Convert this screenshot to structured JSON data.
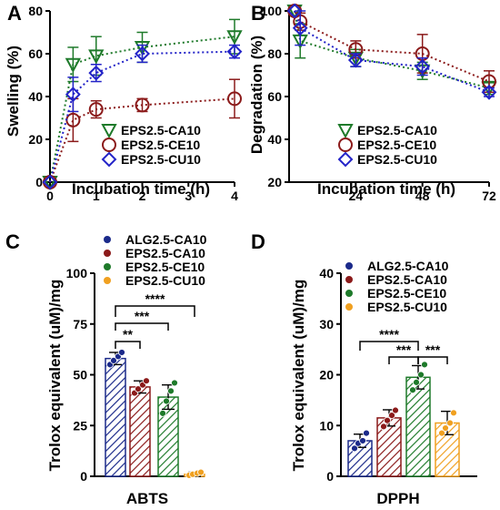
{
  "colors": {
    "CA": "#1e7a2a",
    "CE": "#8b1a1a",
    "CU": "#2323c8",
    "ALG": "#1b2a8a",
    "orange": "#f0a020"
  },
  "panels": [
    {
      "letter": "A",
      "chart_data": {
        "type": "line",
        "xlabel": "Incubation time (h)",
        "ylabel": "Swelling (%)",
        "xlim": [
          0,
          4
        ],
        "ylim": [
          0,
          80
        ],
        "xticks": [
          "0",
          "1",
          "2",
          "3",
          "4"
        ],
        "yticks": [
          "0",
          "20",
          "40",
          "60",
          "80"
        ],
        "series": [
          {
            "name": "EPS2.5-CA10",
            "x": [
              0,
              0.5,
              1,
              2,
              4
            ],
            "y": [
              0,
              55,
              59,
              63,
              68
            ],
            "err": [
              0,
              8,
              9,
              7,
              8
            ]
          },
          {
            "name": "EPS2.5-CE10",
            "x": [
              0,
              0.5,
              1,
              2,
              4
            ],
            "y": [
              0,
              29,
              34,
              36,
              39
            ],
            "err": [
              0,
              10,
              4,
              3,
              9
            ]
          },
          {
            "name": "EPS2.5-CU10",
            "x": [
              0,
              0.5,
              1,
              2,
              4
            ],
            "y": [
              0,
              41,
              51,
              60,
              61
            ],
            "err": [
              0,
              8,
              4,
              4,
              3
            ]
          }
        ]
      }
    },
    {
      "letter": "B",
      "chart_data": {
        "type": "line",
        "xlabel": "Incubation time (h)",
        "ylabel": "Degradation (%)",
        "xlim": [
          0,
          72
        ],
        "ylim": [
          20,
          100
        ],
        "xticks": [
          "24",
          "48",
          "72"
        ],
        "yticks": [
          "20",
          "40",
          "60",
          "80",
          "100"
        ],
        "series": [
          {
            "name": "EPS2.5-CA10",
            "x": [
              2,
              4,
              24,
              48,
              72
            ],
            "y": [
              100,
              86,
              78,
              72,
              64
            ],
            "err": [
              0,
              8,
              4,
              4,
              3
            ]
          },
          {
            "name": "EPS2.5-CE10",
            "x": [
              2,
              4,
              24,
              48,
              72
            ],
            "y": [
              100,
              95,
              82,
              80,
              67
            ],
            "err": [
              0,
              4,
              4,
              9,
              5
            ]
          },
          {
            "name": "EPS2.5-CU10",
            "x": [
              2,
              4,
              24,
              48,
              72
            ],
            "y": [
              100,
              92,
              77,
              74,
              62
            ],
            "err": [
              0,
              8,
              3,
              4,
              2
            ]
          }
        ]
      }
    },
    {
      "letter": "C",
      "chart_data": {
        "type": "bar",
        "xlabel": "ABTS",
        "ylabel": "Trolox equivalent (uM)/mg",
        "ylim": [
          0,
          100
        ],
        "yticks": [
          "0",
          "25",
          "50",
          "75",
          "100"
        ],
        "series": [
          {
            "name": "ALG2.5-CA10",
            "value": 58,
            "err": 3,
            "points": [
              55,
              57,
              59,
              61
            ]
          },
          {
            "name": "EPS2.5-CA10",
            "value": 44,
            "err": 3,
            "points": [
              41,
              43,
              45,
              47
            ]
          },
          {
            "name": "EPS2.5-CE10",
            "value": 39,
            "err": 6,
            "points": [
              31,
              37,
              42,
              46
            ]
          },
          {
            "name": "EPS2.5-CU10",
            "value": 1,
            "err": 1,
            "points": [
              0.5,
              1,
              1.5,
              2
            ]
          }
        ],
        "significance": [
          "**",
          "***",
          "****"
        ]
      }
    },
    {
      "letter": "D",
      "chart_data": {
        "type": "bar",
        "xlabel": "DPPH",
        "ylabel": "Trolox equivalent (uM)/mg",
        "ylim": [
          0,
          40
        ],
        "yticks": [
          "0",
          "10",
          "20",
          "30",
          "40"
        ],
        "series": [
          {
            "name": "ALG2.5-CA10",
            "value": 7,
            "err": 1.3,
            "points": [
              5.5,
              6.5,
              7,
              8.5
            ]
          },
          {
            "name": "EPS2.5-CA10",
            "value": 11.5,
            "err": 1.6,
            "points": [
              9.8,
              11,
              12,
              13
            ]
          },
          {
            "name": "EPS2.5-CE10",
            "value": 19.5,
            "err": 2.3,
            "points": [
              17,
              18.5,
              20,
              22
            ]
          },
          {
            "name": "EPS2.5-CU10",
            "value": 10.5,
            "err": 2.3,
            "points": [
              8.5,
              9.5,
              10.5,
              12.5
            ]
          }
        ],
        "significance": [
          "****",
          "***",
          "***"
        ]
      }
    }
  ]
}
